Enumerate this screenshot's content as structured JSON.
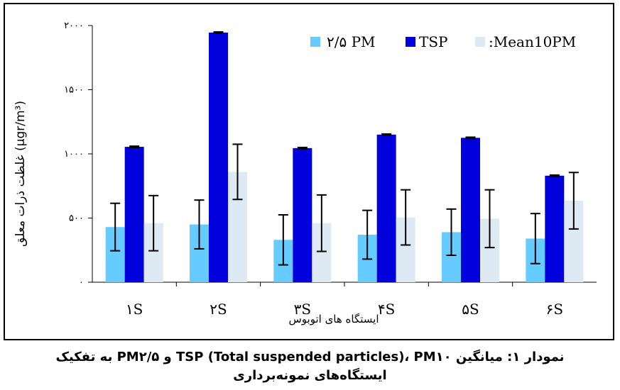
{
  "chart_data": {
    "type": "bar",
    "categories": [
      "۱S",
      "۲S",
      "۳S",
      "۴S",
      "۵S",
      "۶S"
    ],
    "series": [
      {
        "name": "۲/۵ PM",
        "color": "#66ccff",
        "values": [
          430,
          450,
          330,
          370,
          390,
          340
        ],
        "error": [
          185,
          190,
          195,
          190,
          180,
          195
        ]
      },
      {
        "name": "TSP",
        "color": "#0000dd",
        "values": [
          1055,
          1945,
          1045,
          1150,
          1125,
          830
        ],
        "error": [
          5,
          5,
          5,
          5,
          5,
          5
        ]
      },
      {
        "name": ":Mean10PM",
        "color": "#dde9f3",
        "values": [
          460,
          860,
          460,
          505,
          495,
          635
        ],
        "error": [
          215,
          215,
          220,
          215,
          225,
          220
        ]
      }
    ],
    "yticks": [
      "۰",
      "۵۰۰",
      "۱۰۰۰",
      "۱۵۰۰",
      "۲۰۰۰"
    ],
    "ylim": [
      0,
      2000
    ],
    "ylabel": "غلظت ذرات معلق (μgr/m³)",
    "xlabel": "ایستگاه های اتوبوس",
    "legend_position": "top-right",
    "grid": false
  },
  "caption": {
    "line1": "نمودار ۱: میانگین TSP (Total suspended particles)، PM۱۰ و PM۲/۵ به تفکیک",
    "line2": "ایستگاه‌های نمونه‌برداری"
  }
}
